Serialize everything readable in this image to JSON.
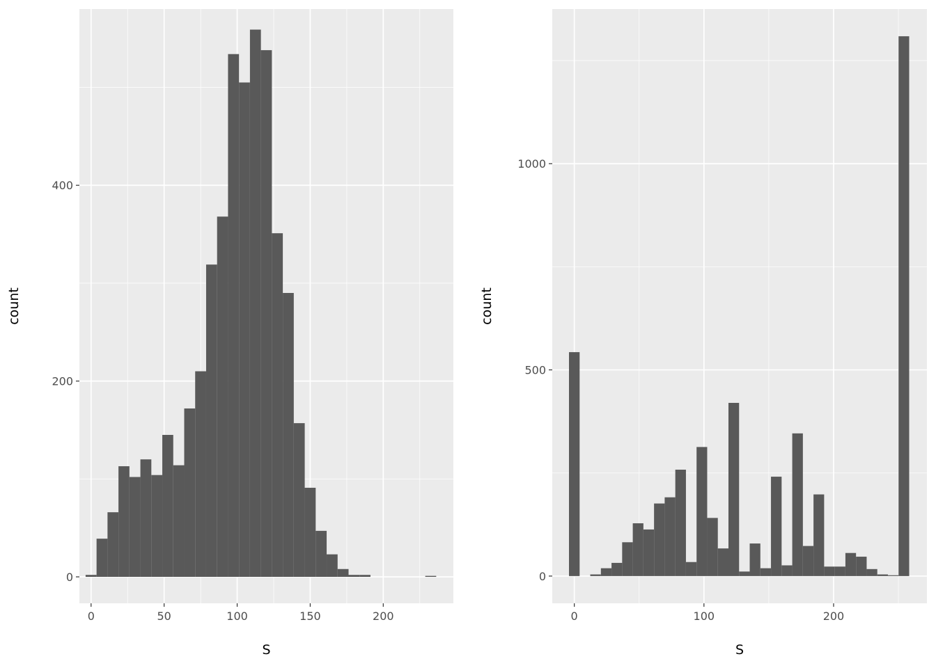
{
  "colors": {
    "panel_background": "#ebebeb",
    "grid_major": "#ffffff",
    "bar_fill": "#595959",
    "tick_text": "#4d4d4d"
  },
  "chart_data": [
    {
      "type": "bar",
      "subtype": "histogram",
      "xlabel": "S",
      "ylabel": "count",
      "xlim": [
        -8,
        248
      ],
      "ylim": [
        -27,
        580
      ],
      "x_ticks": [
        0,
        50,
        100,
        150,
        200
      ],
      "x_tick_labels": [
        "0",
        "50",
        "100",
        "150",
        "200"
      ],
      "y_ticks": [
        0,
        200,
        400
      ],
      "y_tick_labels": [
        "0",
        "200",
        "400"
      ],
      "x_minor_ticks": [
        25,
        75,
        125,
        175,
        225
      ],
      "y_minor_ticks": [
        100,
        300,
        500
      ],
      "grid": true,
      "bin_width": 7.5,
      "bin_starts": [
        -3.75,
        3.75,
        11.25,
        18.75,
        26.25,
        33.75,
        41.25,
        48.75,
        56.25,
        63.75,
        71.25,
        78.75,
        86.25,
        93.75,
        101.25,
        108.75,
        116.25,
        123.75,
        131.25,
        138.75,
        146.25,
        153.75,
        161.25,
        168.75,
        176.25,
        183.75,
        191.25,
        198.75,
        206.25,
        213.75,
        221.25,
        228.75
      ],
      "values": [
        2,
        39,
        66,
        113,
        102,
        120,
        104,
        145,
        114,
        172,
        210,
        319,
        368,
        534,
        505,
        559,
        538,
        351,
        290,
        157,
        91,
        47,
        23,
        8,
        2,
        2,
        0,
        0,
        0,
        0,
        0,
        1
      ]
    },
    {
      "type": "bar",
      "subtype": "histogram",
      "xlabel": "S",
      "ylabel": "count",
      "xlim": [
        -17,
        272
      ],
      "ylim": [
        -66,
        1375
      ],
      "x_ticks": [
        0,
        100,
        200
      ],
      "x_tick_labels": [
        "0",
        "100",
        "200"
      ],
      "y_ticks": [
        0,
        500,
        1000
      ],
      "y_tick_labels": [
        "0",
        "500",
        "1000"
      ],
      "x_minor_ticks": [
        50,
        150,
        250
      ],
      "y_minor_ticks": [
        250,
        750,
        1250
      ],
      "grid": true,
      "bin_width": 8.2,
      "bin_starts": [
        -4.1,
        4.1,
        12.3,
        20.5,
        28.7,
        36.9,
        45.1,
        53.3,
        61.5,
        69.7,
        77.9,
        86.1,
        94.3,
        102.5,
        110.7,
        118.9,
        127.1,
        135.3,
        143.5,
        151.7,
        159.9,
        168.1,
        176.3,
        184.5,
        192.7,
        200.9,
        209.1,
        217.3,
        225.5,
        233.7,
        241.9,
        250.1
      ],
      "values": [
        543,
        0,
        4,
        19,
        32,
        82,
        128,
        113,
        176,
        191,
        258,
        34,
        313,
        141,
        67,
        420,
        11,
        79,
        19,
        241,
        26,
        346,
        73,
        198,
        23,
        23,
        56,
        47,
        17,
        4,
        2,
        1309
      ]
    }
  ]
}
